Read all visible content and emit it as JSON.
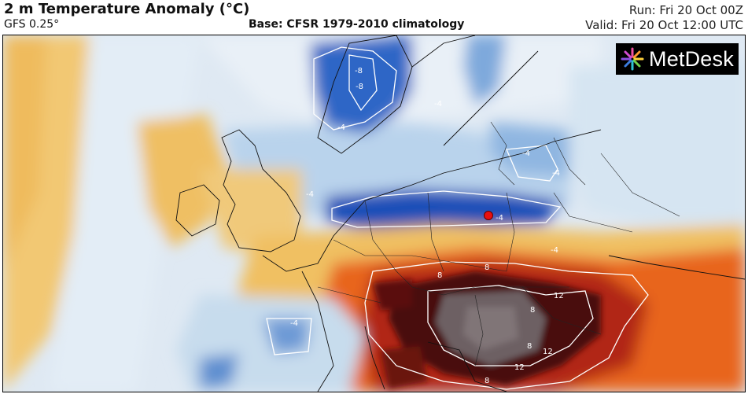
{
  "header": {
    "title": "2 m Temperature Anomaly (°C)",
    "model": "GFS 0.25°",
    "base": "Base: CFSR 1979-2010 climatology",
    "run": "Run: Fri 20 Oct 00Z",
    "valid": "Valid: Fri 20 Oct 12:00 UTC"
  },
  "logo": {
    "text": "MetDesk",
    "icon": "starburst-logo-icon"
  },
  "contour_labels": [
    "-8",
    "-8",
    "-4",
    "-4",
    "-4",
    "-4",
    "-4",
    "-4",
    "-4",
    "-4",
    "8",
    "8",
    "8",
    "8",
    "8",
    "12",
    "12",
    "12"
  ],
  "colors": {
    "cold_deep": "#1f4fb8",
    "cold": "#5f95d4",
    "cool": "#c4dcef",
    "neutral": "#f3f5f8",
    "warm": "#f2c873",
    "hot": "#e8651f",
    "very_hot": "#a31e10",
    "extreme": "#4a0a08",
    "marker": "#e81010"
  }
}
